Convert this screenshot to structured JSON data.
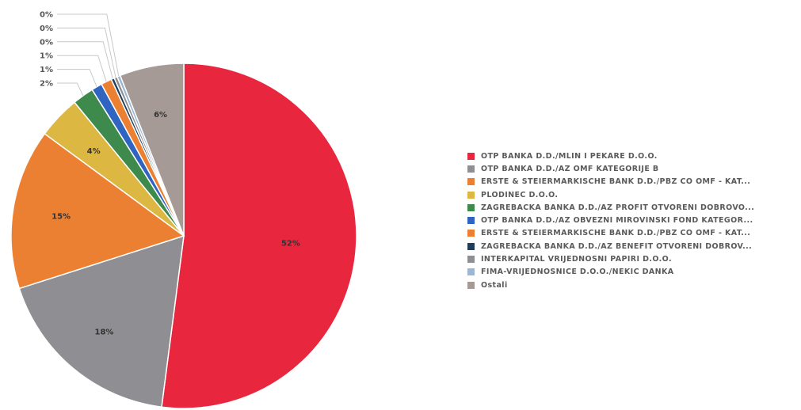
{
  "chart_data": {
    "type": "pie",
    "slices": [
      {
        "name": "OTP BANKA D.D./MLIN I PEKARE D.O.O.",
        "value": 52,
        "label": "52%",
        "color": "#e8273f"
      },
      {
        "name": "OTP BANKA D.D./AZ OMF KATEGORIJE B",
        "value": 18,
        "label": "18%",
        "color": "#8e8e93"
      },
      {
        "name": "ERSTE & STEIERMARKISCHE BANK D.D./PBZ CO OMF - KAT...",
        "value": 15,
        "label": "15%",
        "color": "#ec8032"
      },
      {
        "name": "PLODINEC D.O.O.",
        "value": 4,
        "label": "4%",
        "color": "#dcb741"
      },
      {
        "name": "ZAGREBAČKA BANKA D.D./AZ PROFIT OTVORENI DOBROVO...",
        "value": 2,
        "label": "2%",
        "color": "#3d8a4c"
      },
      {
        "name": "OTP BANKA D.D./AZ OBVEZNI MIROVINSKI FOND KATEGOR...",
        "value": 1,
        "label": "1%",
        "color": "#2f64c0"
      },
      {
        "name": "ERSTE & STEIERMARKISCHE BANK D.D./PBZ CO OMF - KAT...",
        "value": 1,
        "label": "1%",
        "color": "#ec8032"
      },
      {
        "name": "ZAGREBAČKA BANKA D.D./AZ BENEFIT OTVORENI DOBROV...",
        "value": 0.3,
        "label": "0%",
        "color": "#1f3e5c"
      },
      {
        "name": "INTERKAPITAL VRIJEDNOSNI PAPIRI D.O.O.",
        "value": 0.3,
        "label": "0%",
        "color": "#8e8e93"
      },
      {
        "name": "FIMA-VRIJEDNOSNICE D.O.O./NEKIĆ DANKA",
        "value": 0.3,
        "label": "0%",
        "color": "#9bb7d4"
      },
      {
        "name": "Ostali",
        "value": 6,
        "label": "6%",
        "color": "#a59a96"
      }
    ],
    "legend_position": "right"
  }
}
